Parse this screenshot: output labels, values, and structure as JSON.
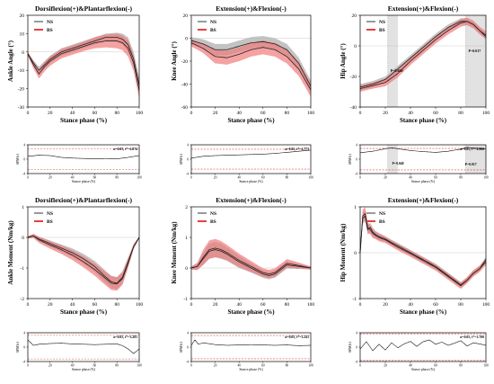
{
  "colors": {
    "ns": "#9a9a9a",
    "bs": "#e8403e",
    "bs_band": "#f07b7a",
    "ns_band": "#b8b8b8",
    "mean_line": "#222222",
    "threshold": "#e8403e",
    "highlight": "#e2e2e2"
  },
  "legend": {
    "ns": "NS",
    "bs": "BS"
  },
  "chart_data": [
    {
      "type": "line",
      "kind": "main",
      "title": "Dorsiflexion(+)&Plantarflexion(-)",
      "xlabel": "Stance phase (%)",
      "ylabel": "Ankle Angle (°)",
      "xlim": [
        0,
        100
      ],
      "ylim": [
        -30,
        20
      ],
      "xticks": [
        "0",
        "20",
        "40",
        "60",
        "80",
        "100"
      ],
      "yticks": [
        "-30",
        "-20",
        "-10",
        "0",
        "10",
        "20"
      ],
      "x": [
        0,
        5,
        10,
        15,
        20,
        30,
        40,
        50,
        60,
        70,
        80,
        85,
        90,
        95,
        100
      ],
      "series": [
        {
          "name": "NS",
          "values": [
            -1,
            -6,
            -10,
            -7,
            -4,
            0,
            2,
            4,
            6,
            8,
            8,
            7,
            4,
            -4,
            -18
          ],
          "spread": [
            1,
            1.5,
            2,
            2,
            2,
            2,
            2,
            2,
            2,
            2,
            2.5,
            3,
            4,
            4,
            4
          ]
        },
        {
          "name": "BS",
          "values": [
            -1,
            -7,
            -12,
            -8,
            -5,
            -1,
            1,
            3,
            5,
            6,
            6,
            5,
            2,
            -6,
            -21
          ],
          "spread": [
            1,
            2,
            2.5,
            2.5,
            2.5,
            2.5,
            2.5,
            2.5,
            3,
            3.5,
            4,
            4,
            4.5,
            4.5,
            4.5
          ]
        }
      ],
      "annotations": []
    },
    {
      "type": "line",
      "kind": "main",
      "title": "Extension(+)&Flexion(-)",
      "xlabel": "Stance phase (%)",
      "ylabel": "Knee Angle (°)",
      "xlim": [
        0,
        100
      ],
      "ylim": [
        -60,
        20
      ],
      "xticks": [
        "0",
        "20",
        "40",
        "60",
        "80",
        "100"
      ],
      "yticks": [
        "-60",
        "-40",
        "-20",
        "0",
        "20"
      ],
      "x": [
        0,
        10,
        20,
        30,
        40,
        50,
        60,
        70,
        80,
        90,
        100
      ],
      "series": [
        {
          "name": "NS",
          "values": [
            -2,
            -5,
            -10,
            -10,
            -7,
            -4,
            -3,
            -5,
            -10,
            -22,
            -42
          ],
          "spread": [
            3,
            4,
            5,
            5,
            5,
            5,
            5,
            5,
            5,
            5,
            5
          ]
        },
        {
          "name": "BS",
          "values": [
            -4,
            -9,
            -16,
            -17,
            -14,
            -10,
            -8,
            -10,
            -16,
            -27,
            -45
          ],
          "spread": [
            3,
            4,
            6,
            6,
            6,
            6,
            6,
            6,
            6,
            6,
            6
          ]
        }
      ],
      "annotations": []
    },
    {
      "type": "line",
      "kind": "main",
      "title": "Extension(+)&Flexion(-)",
      "xlabel": "Stance phase (%)",
      "ylabel": "Hip Angle (°)",
      "xlim": [
        0,
        100
      ],
      "ylim": [
        -40,
        20
      ],
      "xticks": [
        "0",
        "20",
        "40",
        "60",
        "80",
        "100"
      ],
      "yticks": [
        "-40",
        "-20",
        "0",
        "20"
      ],
      "x": [
        0,
        10,
        20,
        30,
        40,
        50,
        60,
        70,
        80,
        85,
        90,
        95,
        100
      ],
      "series": [
        {
          "name": "NS",
          "values": [
            -27,
            -25,
            -22,
            -15,
            -8,
            -1,
            6,
            12,
            16,
            16,
            14,
            10,
            6
          ],
          "spread": [
            2,
            2,
            2,
            2,
            2,
            2,
            2,
            2,
            2,
            2,
            2,
            2,
            2
          ]
        },
        {
          "name": "BS",
          "values": [
            -28,
            -26,
            -24,
            -18,
            -10,
            -3,
            4,
            10,
            15,
            16,
            14,
            10,
            7
          ],
          "spread": [
            2,
            2,
            2.5,
            2.5,
            2.5,
            2.5,
            2.5,
            2.5,
            2.5,
            2.5,
            2.5,
            2.5,
            2.5
          ]
        }
      ],
      "highlights": [
        [
          22,
          30
        ],
        [
          84,
          100
        ]
      ],
      "annotations": [
        {
          "text": "P=0.040",
          "x": 29,
          "y": -17
        },
        {
          "text": "P=0.017",
          "x": 91,
          "y": -4
        }
      ]
    },
    {
      "type": "line",
      "kind": "spm",
      "xlabel": "Stance phase (%)",
      "ylabel": "SPM{t}",
      "xlim": [
        0,
        100
      ],
      "ylim": [
        -4,
        4
      ],
      "xticks": [
        "0",
        "20",
        "40",
        "60",
        "80",
        "100"
      ],
      "yticks": [
        "-4",
        "0",
        "4"
      ],
      "threshold": 2.874,
      "stat_label": "α=0.05,  t*=2.874",
      "x": [
        0,
        10,
        20,
        30,
        40,
        50,
        60,
        70,
        80,
        90,
        100
      ],
      "series": [
        {
          "name": "SPM{t}",
          "values": [
            0.8,
            1.1,
            1.0,
            0.5,
            0.3,
            0.2,
            0.1,
            0.2,
            0.1,
            0.5,
            1.0
          ]
        }
      ],
      "highlights": [],
      "annotations": []
    },
    {
      "type": "line",
      "kind": "spm",
      "xlabel": "Stance phase (%)",
      "ylabel": "SPM{t}",
      "xlim": [
        0,
        100
      ],
      "ylim": [
        -4,
        4
      ],
      "xticks": [
        "0",
        "20",
        "40",
        "60",
        "80",
        "100"
      ],
      "yticks": [
        "-4",
        "0",
        "4"
      ],
      "threshold": 2.773,
      "stat_label": "α=0.05,  t*=2.773",
      "x": [
        0,
        10,
        20,
        30,
        40,
        50,
        60,
        70,
        80,
        90,
        100
      ],
      "series": [
        {
          "name": "SPM{t}",
          "values": [
            0.3,
            0.8,
            1.0,
            1.1,
            1.2,
            1.3,
            1.4,
            1.6,
            1.9,
            2.2,
            2.5
          ]
        }
      ],
      "highlights": [],
      "annotations": []
    },
    {
      "type": "line",
      "kind": "spm",
      "xlabel": "Stance phase (%)",
      "ylabel": "SPM{t}",
      "xlim": [
        0,
        100
      ],
      "ylim": [
        -4,
        4
      ],
      "xticks": [
        "0",
        "20",
        "40",
        "60",
        "80",
        "100"
      ],
      "yticks": [
        "-4",
        "0",
        "4"
      ],
      "threshold": 2.982,
      "stat_label": "α=0.05,  t*=2.982",
      "x": [
        0,
        10,
        20,
        25,
        30,
        40,
        50,
        60,
        70,
        80,
        85,
        90,
        100
      ],
      "series": [
        {
          "name": "SPM{t}",
          "values": [
            1.8,
            2.2,
            2.9,
            3.2,
            2.9,
            2.4,
            2.1,
            1.9,
            2.2,
            2.8,
            3.3,
            3.1,
            2.8
          ]
        }
      ],
      "highlights": [
        [
          22,
          30
        ],
        [
          84,
          100
        ]
      ],
      "annotations": [
        {
          "text": "P=0.040",
          "x": 30,
          "y": -1.5
        },
        {
          "text": "P=0.017",
          "x": 88,
          "y": -1.8
        }
      ]
    },
    {
      "type": "line",
      "kind": "main",
      "title": "Dorsiflexion(+)&Plantarflexion(-)",
      "xlabel": "Stance phase (%)",
      "ylabel": "Ankle Moment (Nm/kg)",
      "xlim": [
        0,
        100
      ],
      "ylim": [
        -2,
        1
      ],
      "xticks": [
        "0",
        "20",
        "40",
        "60",
        "80",
        "100"
      ],
      "yticks": [
        "-2",
        "-1",
        "0",
        "1"
      ],
      "x": [
        0,
        5,
        10,
        20,
        30,
        40,
        50,
        60,
        70,
        75,
        80,
        85,
        90,
        95,
        100
      ],
      "series": [
        {
          "name": "NS",
          "values": [
            0,
            0.05,
            -0.05,
            -0.2,
            -0.35,
            -0.5,
            -0.7,
            -0.95,
            -1.3,
            -1.45,
            -1.5,
            -1.3,
            -0.8,
            -0.3,
            0
          ],
          "spread": [
            0.03,
            0.06,
            0.08,
            0.1,
            0.12,
            0.14,
            0.16,
            0.18,
            0.2,
            0.2,
            0.2,
            0.2,
            0.15,
            0.08,
            0.03
          ]
        },
        {
          "name": "BS",
          "values": [
            0,
            0.05,
            -0.08,
            -0.25,
            -0.4,
            -0.58,
            -0.8,
            -1.05,
            -1.35,
            -1.5,
            -1.52,
            -1.35,
            -0.85,
            -0.3,
            0
          ],
          "spread": [
            0.04,
            0.07,
            0.1,
            0.12,
            0.14,
            0.16,
            0.18,
            0.2,
            0.22,
            0.22,
            0.22,
            0.2,
            0.15,
            0.08,
            0.03
          ]
        }
      ],
      "annotations": []
    },
    {
      "type": "line",
      "kind": "main",
      "title": "Extension(+)&Flexion(-)",
      "xlabel": "Stance phase (%)",
      "ylabel": "Knee Moment (Nm/kg)",
      "xlim": [
        0,
        100
      ],
      "ylim": [
        -1,
        2
      ],
      "xticks": [
        "0",
        "20",
        "40",
        "60",
        "80",
        "100"
      ],
      "yticks": [
        "-1",
        "0",
        "1",
        "2"
      ],
      "x": [
        0,
        5,
        10,
        15,
        20,
        25,
        30,
        40,
        50,
        60,
        65,
        70,
        75,
        80,
        90,
        100
      ],
      "series": [
        {
          "name": "NS",
          "values": [
            0,
            0.05,
            0.3,
            0.55,
            0.6,
            0.55,
            0.45,
            0.2,
            0.0,
            -0.2,
            -0.25,
            -0.2,
            -0.05,
            0.1,
            0.05,
            0
          ],
          "spread": [
            0.05,
            0.1,
            0.2,
            0.25,
            0.25,
            0.25,
            0.22,
            0.2,
            0.15,
            0.12,
            0.12,
            0.12,
            0.12,
            0.12,
            0.08,
            0.05
          ]
        },
        {
          "name": "BS",
          "values": [
            0,
            0.05,
            0.35,
            0.6,
            0.65,
            0.6,
            0.5,
            0.25,
            0.05,
            -0.15,
            -0.2,
            -0.15,
            0.0,
            0.15,
            0.08,
            0
          ],
          "spread": [
            0.05,
            0.12,
            0.25,
            0.3,
            0.3,
            0.28,
            0.25,
            0.22,
            0.18,
            0.14,
            0.14,
            0.14,
            0.14,
            0.14,
            0.1,
            0.05
          ]
        }
      ],
      "annotations": []
    },
    {
      "type": "line",
      "kind": "main",
      "title": "Extension(+)&Flexion(-)",
      "xlabel": "Stance phase (%)",
      "ylabel": "Hip Moment (Nm/kg)",
      "xlim": [
        0,
        100
      ],
      "ylim": [
        -1,
        1
      ],
      "xticks": [
        "0",
        "20",
        "40",
        "60",
        "80",
        "100"
      ],
      "yticks": [
        "-1",
        "0",
        "1"
      ],
      "x": [
        0,
        2,
        4,
        6,
        8,
        10,
        12,
        15,
        20,
        25,
        30,
        40,
        50,
        60,
        70,
        75,
        80,
        85,
        90,
        95,
        100
      ],
      "series": [
        {
          "name": "NS",
          "values": [
            0,
            0.75,
            0.8,
            0.5,
            0.55,
            0.45,
            0.4,
            0.35,
            0.3,
            0.22,
            0.15,
            0.0,
            -0.15,
            -0.3,
            -0.5,
            -0.6,
            -0.7,
            -0.6,
            -0.45,
            -0.35,
            -0.15
          ],
          "spread": [
            0.05,
            0.12,
            0.12,
            0.1,
            0.1,
            0.1,
            0.08,
            0.08,
            0.06,
            0.06,
            0.06,
            0.06,
            0.06,
            0.06,
            0.06,
            0.06,
            0.06,
            0.06,
            0.06,
            0.06,
            0.06
          ]
        },
        {
          "name": "BS",
          "values": [
            0,
            0.8,
            0.85,
            0.55,
            0.5,
            0.42,
            0.38,
            0.33,
            0.28,
            0.2,
            0.12,
            -0.02,
            -0.17,
            -0.32,
            -0.52,
            -0.62,
            -0.72,
            -0.6,
            -0.45,
            -0.35,
            -0.2
          ],
          "spread": [
            0.05,
            0.14,
            0.14,
            0.12,
            0.1,
            0.1,
            0.08,
            0.08,
            0.07,
            0.07,
            0.07,
            0.07,
            0.07,
            0.07,
            0.07,
            0.07,
            0.07,
            0.07,
            0.07,
            0.07,
            0.07
          ]
        }
      ],
      "annotations": []
    },
    {
      "type": "line",
      "kind": "spm",
      "xlabel": "Stance phase (%)",
      "ylabel": "SPM{t}",
      "xlim": [
        0,
        100
      ],
      "ylim": [
        -4,
        4
      ],
      "xticks": [
        "0",
        "20",
        "40",
        "60",
        "80",
        "100"
      ],
      "yticks": [
        "-4",
        "0",
        "4"
      ],
      "threshold": 3.281,
      "stat_label": "α=0.05,  t*=3.281",
      "x": [
        0,
        5,
        10,
        20,
        30,
        40,
        50,
        60,
        70,
        80,
        85,
        90,
        95,
        100
      ],
      "series": [
        {
          "name": "SPM{t}",
          "values": [
            2.0,
            0.5,
            0.8,
            1.0,
            1.1,
            0.9,
            0.8,
            0.7,
            0.8,
            0.9,
            0.4,
            -0.5,
            -1.8,
            -0.5
          ]
        }
      ],
      "highlights": [],
      "annotations": []
    },
    {
      "type": "line",
      "kind": "spm",
      "xlabel": "Stance phase (%)",
      "ylabel": "SPM{t}",
      "xlim": [
        0,
        100
      ],
      "ylim": [
        -4,
        4
      ],
      "xticks": [
        "0",
        "20",
        "40",
        "60",
        "80",
        "100"
      ],
      "yticks": [
        "-4",
        "0",
        "4"
      ],
      "threshold": 3.241,
      "stat_label": "α=0.05,  t*=3.241",
      "x": [
        0,
        3,
        6,
        10,
        20,
        30,
        40,
        50,
        60,
        70,
        80,
        90,
        100
      ],
      "series": [
        {
          "name": "SPM{t}",
          "values": [
            0.5,
            2.0,
            0.8,
            1.2,
            0.7,
            0.5,
            0.6,
            0.7,
            0.6,
            0.5,
            0.6,
            0.4,
            0.5
          ]
        }
      ],
      "highlights": [],
      "annotations": []
    },
    {
      "type": "line",
      "kind": "spm",
      "xlabel": "Stance phase (%)",
      "ylabel": "SPM{t}",
      "xlim": [
        0,
        100
      ],
      "ylim": [
        -4,
        4
      ],
      "xticks": [
        "0",
        "20",
        "40",
        "60",
        "80",
        "100"
      ],
      "yticks": [
        "-4",
        "0",
        "4"
      ],
      "threshold": 3.7,
      "stat_label": "α=0.05,  t*=3.700",
      "x": [
        0,
        5,
        10,
        15,
        20,
        25,
        30,
        35,
        40,
        45,
        50,
        55,
        60,
        65,
        70,
        75,
        80,
        85,
        90,
        95,
        100
      ],
      "series": [
        {
          "name": "SPM{t}",
          "values": [
            -0.5,
            1.5,
            -1.0,
            0.8,
            -0.8,
            1.2,
            -0.2,
            0.9,
            1.6,
            0.2,
            1.5,
            2.0,
            0.8,
            1.4,
            0.5,
            1.1,
            1.8,
            0.3,
            1.2,
            0.9,
            0.5
          ]
        }
      ],
      "highlights": [],
      "annotations": []
    }
  ]
}
